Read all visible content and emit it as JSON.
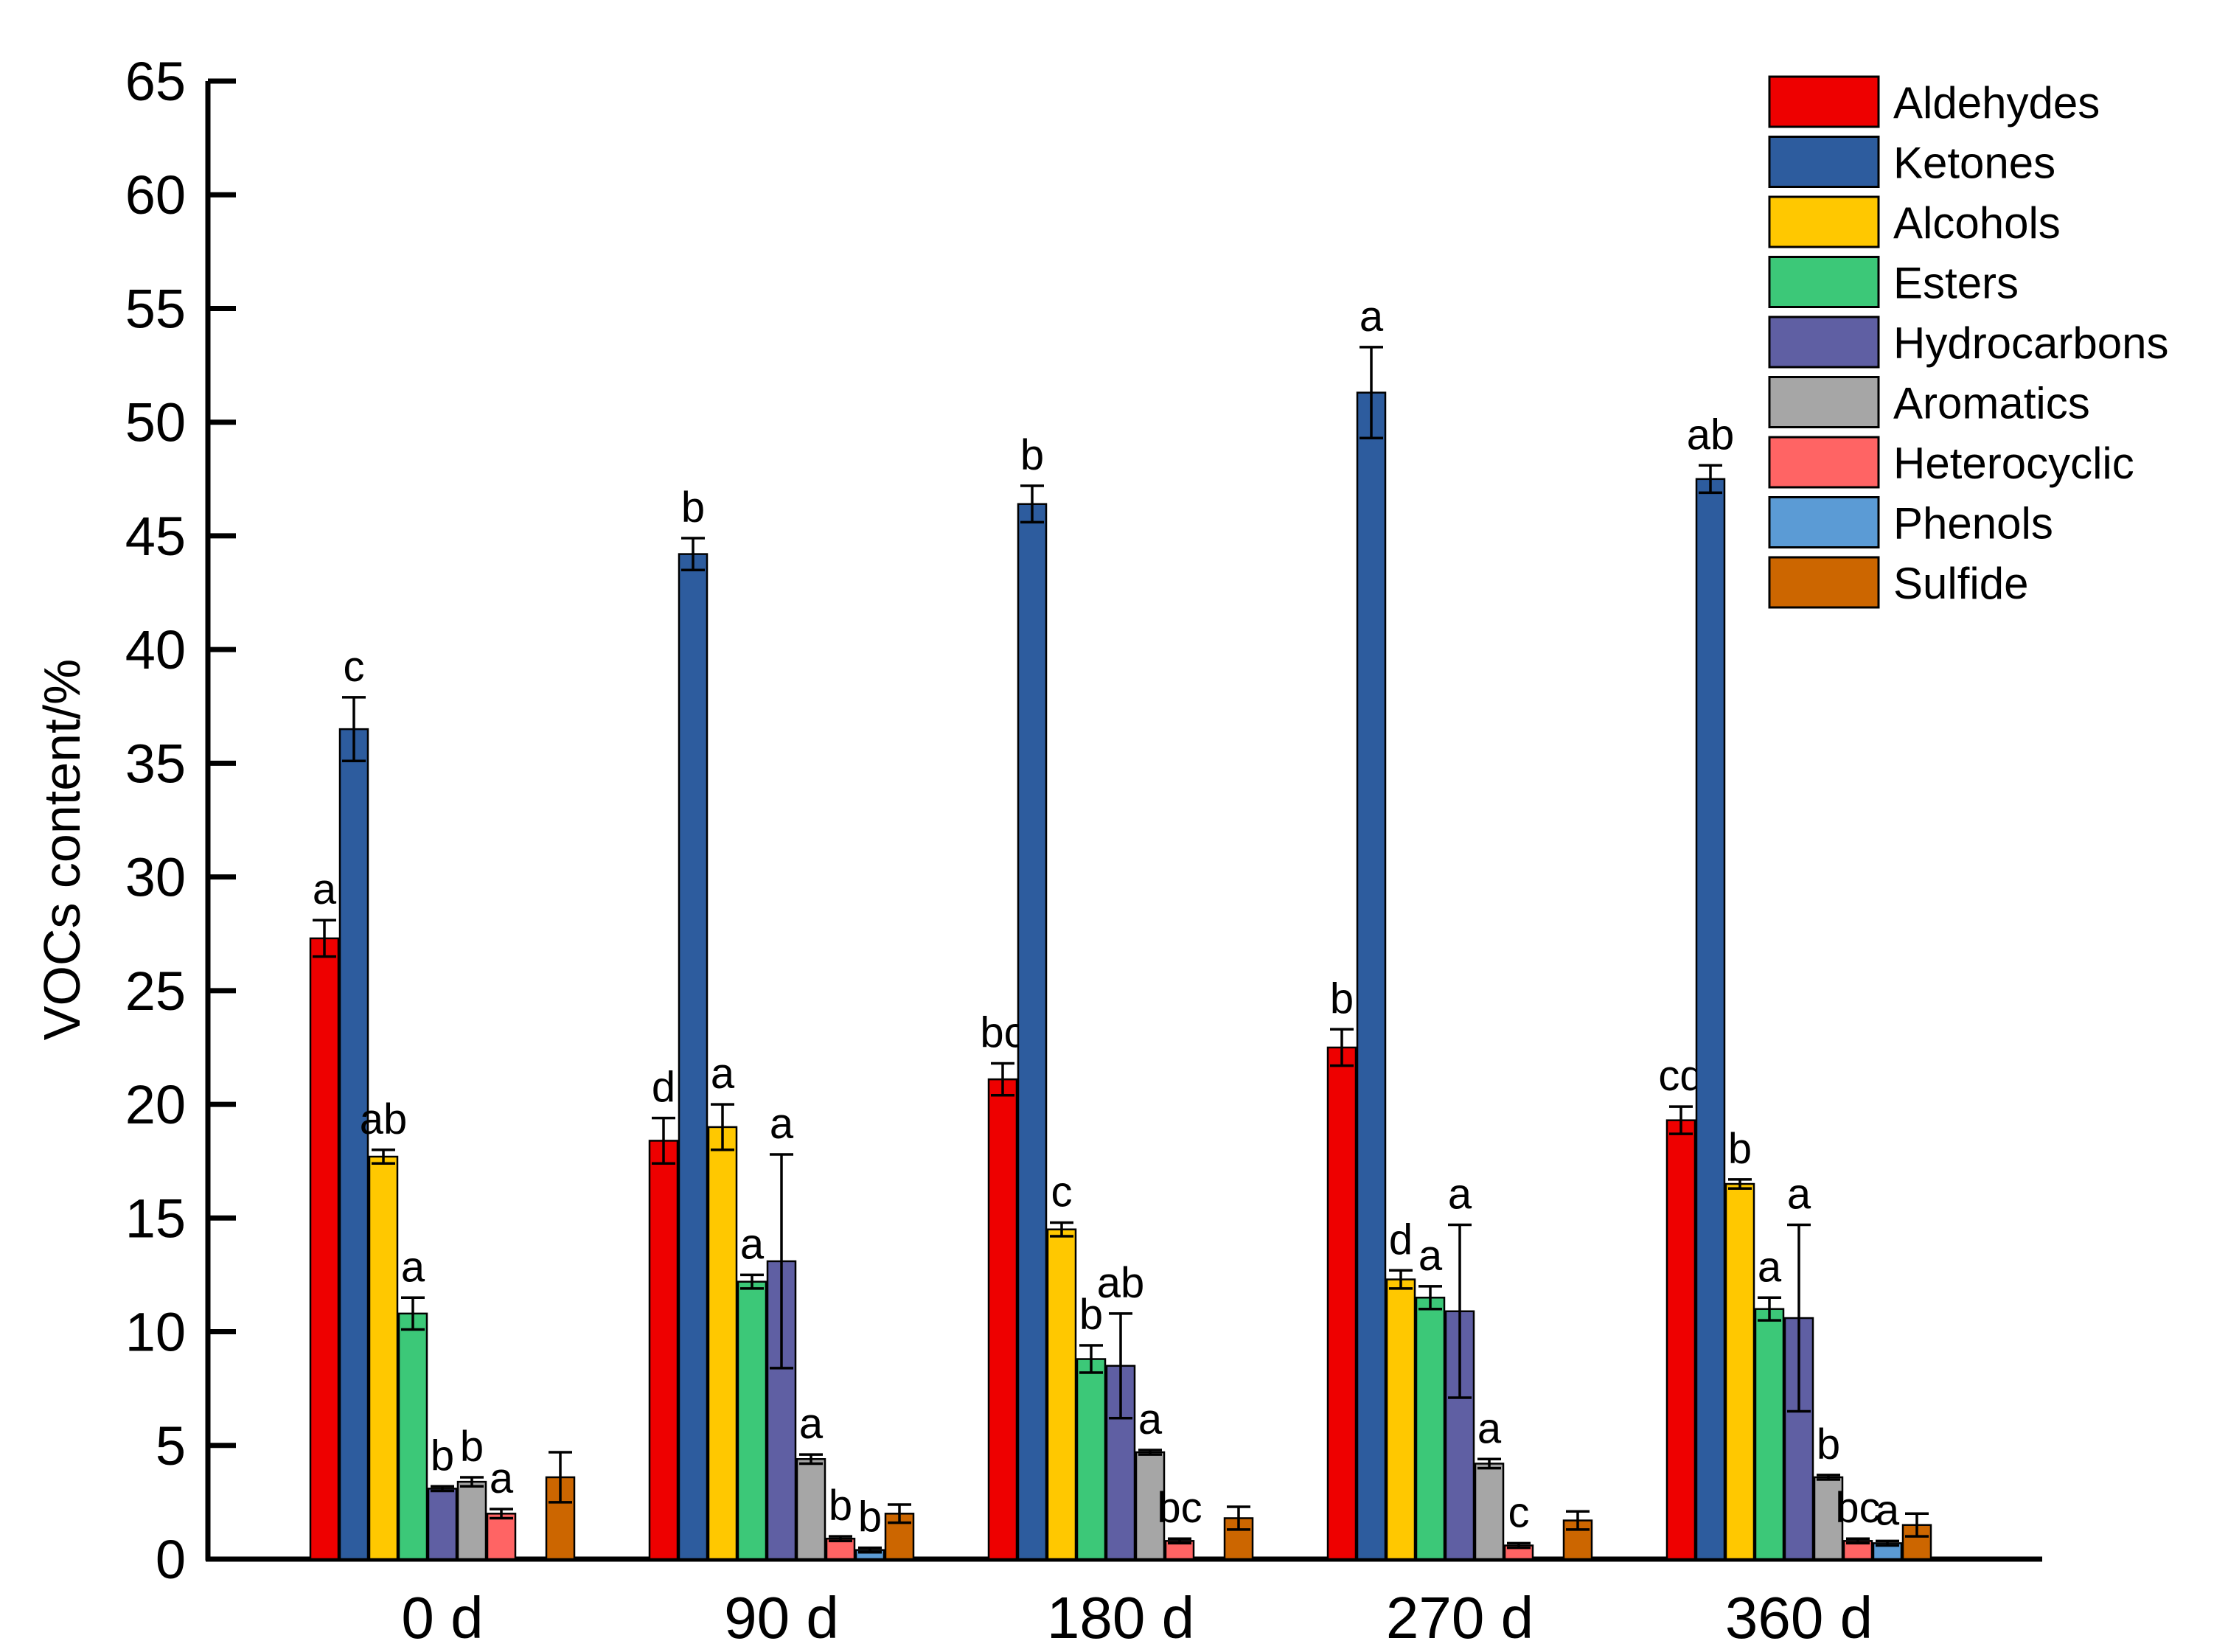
{
  "chart_data": {
    "type": "bar",
    "title": "",
    "xlabel": "",
    "ylabel": "VOCs content/%",
    "ylim": [
      0,
      65
    ],
    "yticks": [
      0,
      5,
      10,
      15,
      20,
      25,
      30,
      35,
      40,
      45,
      50,
      55,
      60,
      65
    ],
    "grid": false,
    "legend_position": "top-right",
    "categories": [
      "0 d",
      "90 d",
      "180 d",
      "270 d",
      "360 d"
    ],
    "series": [
      {
        "name": "Aldehydes",
        "color": "#EE0000",
        "values": [
          27.3,
          18.4,
          21.1,
          22.5,
          19.3
        ],
        "errors": [
          0.8,
          1.0,
          0.7,
          0.8,
          0.6
        ],
        "letters": [
          "a",
          "d",
          "bc",
          "b",
          "cd"
        ]
      },
      {
        "name": "Ketones",
        "color": "#2D5C9E",
        "values": [
          36.5,
          44.2,
          46.4,
          51.3,
          47.5
        ],
        "errors": [
          1.4,
          0.7,
          0.8,
          2.0,
          0.6
        ],
        "letters": [
          "c",
          "b",
          "b",
          "a",
          "ab"
        ]
      },
      {
        "name": "Alcohols",
        "color": "#FFC800",
        "values": [
          17.7,
          19.0,
          14.5,
          12.3,
          16.5
        ],
        "errors": [
          0.3,
          1.0,
          0.3,
          0.4,
          0.2
        ],
        "letters": [
          "ab",
          "a",
          "c",
          "d",
          "b"
        ]
      },
      {
        "name": "Esters",
        "color": "#3CC878",
        "values": [
          10.8,
          12.2,
          8.8,
          11.5,
          11.0
        ],
        "errors": [
          0.7,
          0.3,
          0.6,
          0.5,
          0.5
        ],
        "letters": [
          "a",
          "a",
          "b",
          "a",
          "a"
        ]
      },
      {
        "name": "Hydrocarbons",
        "color": "#5F5FA3",
        "values": [
          3.1,
          13.1,
          8.5,
          10.9,
          10.6
        ],
        "errors": [
          0.1,
          4.7,
          2.3,
          3.8,
          4.1
        ],
        "letters": [
          "b",
          "a",
          "ab",
          "a",
          "a"
        ]
      },
      {
        "name": "Aromatics",
        "color": "#A6A6A6",
        "values": [
          3.4,
          4.4,
          4.7,
          4.2,
          3.6
        ],
        "errors": [
          0.2,
          0.2,
          0.1,
          0.2,
          0.1
        ],
        "letters": [
          "b",
          "a",
          "a",
          "a",
          "b"
        ]
      },
      {
        "name": "Heterocyclic",
        "color": "#FF6464",
        "values": [
          2.0,
          0.9,
          0.8,
          0.6,
          0.8
        ],
        "errors": [
          0.2,
          0.1,
          0.1,
          0.1,
          0.1
        ],
        "letters": [
          "a",
          "b",
          "bc",
          "c",
          "bc"
        ]
      },
      {
        "name": "Phenols",
        "color": "#5B9BD5",
        "values": [
          null,
          0.4,
          null,
          null,
          0.7
        ],
        "errors": [
          null,
          0.1,
          null,
          null,
          0.1
        ],
        "letters": [
          "",
          "b",
          "",
          "",
          "a"
        ]
      },
      {
        "name": "Sulfide",
        "color": "#CC6600",
        "values": [
          3.6,
          2.0,
          1.8,
          1.7,
          1.5
        ],
        "errors": [
          1.1,
          0.4,
          0.5,
          0.4,
          0.5
        ],
        "letters": [
          "",
          "",
          "",
          "",
          ""
        ]
      }
    ]
  }
}
